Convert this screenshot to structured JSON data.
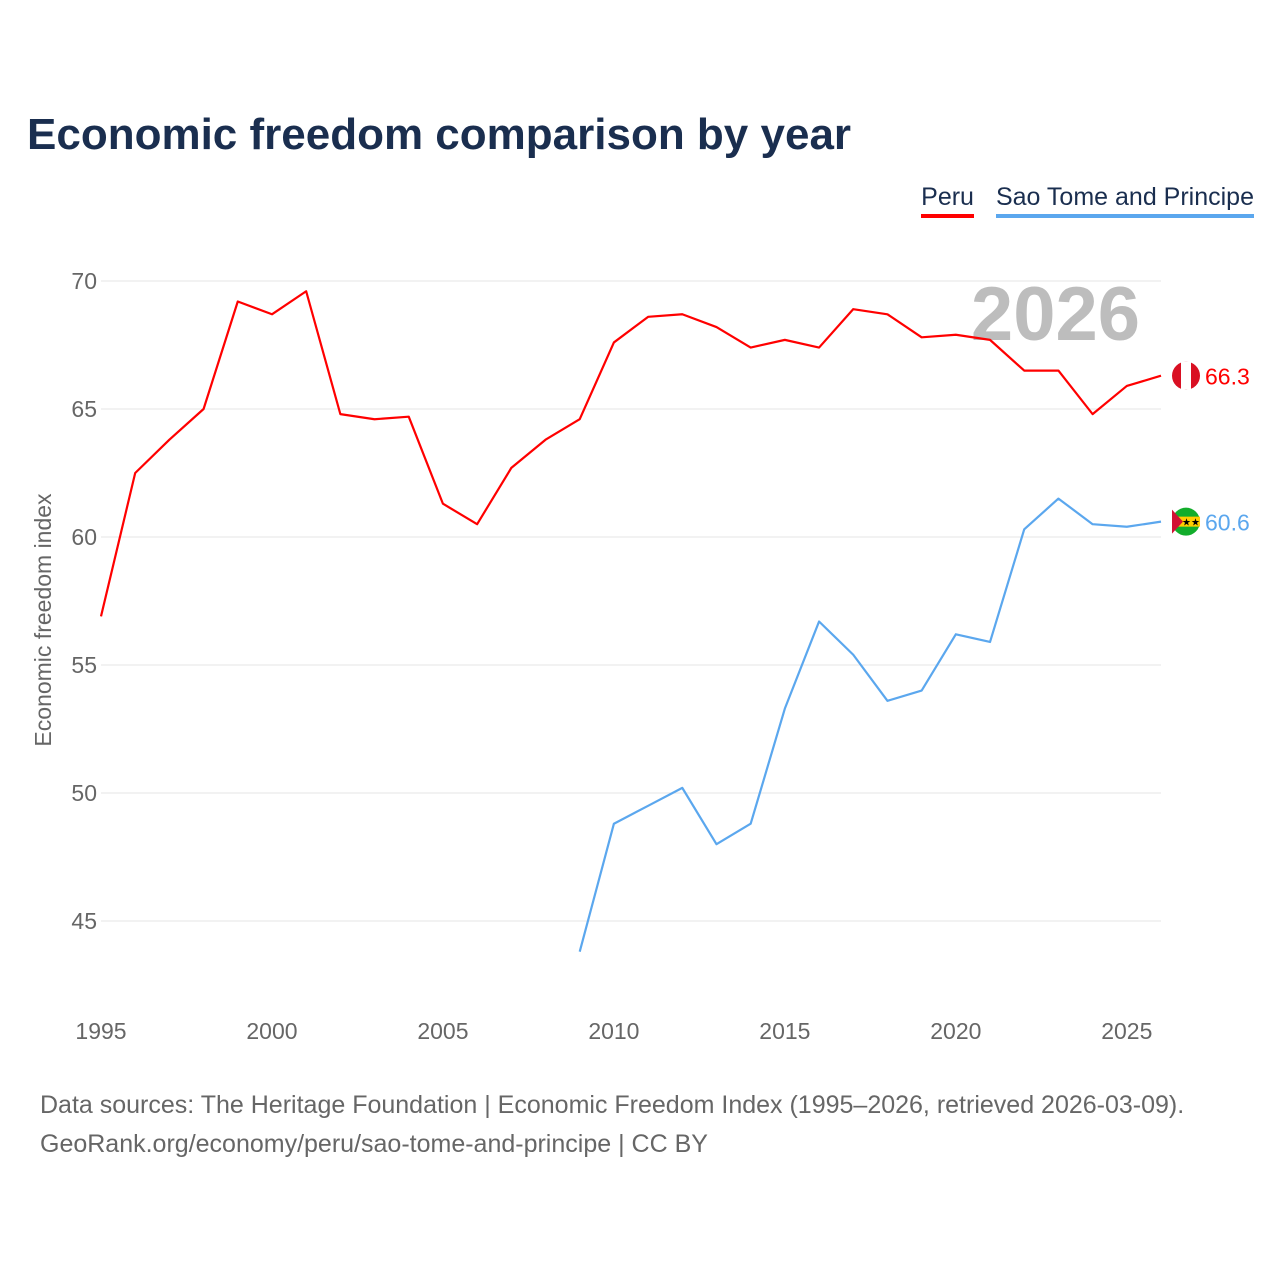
{
  "chart_data": {
    "type": "line",
    "title": "Economic freedom comparison by year",
    "xlabel": "",
    "ylabel": "Economic freedom index",
    "xlim": [
      1995,
      2026
    ],
    "ylim": [
      42.4,
      70
    ],
    "x_ticks": [
      "1995",
      "2000",
      "2005",
      "2010",
      "2015",
      "2020",
      "2025"
    ],
    "y_ticks": [
      "70",
      "65",
      "60",
      "55",
      "50",
      "45"
    ],
    "grid": true,
    "legend_position": "top-right",
    "year_label": "2026",
    "series": [
      {
        "name": "Peru",
        "color": "#ff0000",
        "end_label": "66.3",
        "x": [
          1995,
          1996,
          1997,
          1998,
          1999,
          2000,
          2001,
          2002,
          2003,
          2004,
          2005,
          2006,
          2007,
          2008,
          2009,
          2010,
          2011,
          2012,
          2013,
          2014,
          2015,
          2016,
          2017,
          2018,
          2019,
          2020,
          2021,
          2022,
          2023,
          2024,
          2025,
          2026
        ],
        "values": [
          56.9,
          62.5,
          63.8,
          65.0,
          69.2,
          68.7,
          69.6,
          64.8,
          64.6,
          64.7,
          61.3,
          60.5,
          62.7,
          63.8,
          64.6,
          67.6,
          68.6,
          68.7,
          68.2,
          67.4,
          67.7,
          67.4,
          68.9,
          68.7,
          67.8,
          67.9,
          67.7,
          66.5,
          66.5,
          64.8,
          65.9,
          66.3
        ]
      },
      {
        "name": "Sao Tome and Principe",
        "color": "#5ba7ee",
        "end_label": "60.6",
        "x": [
          2009,
          2010,
          2011,
          2012,
          2013,
          2014,
          2015,
          2016,
          2017,
          2018,
          2019,
          2020,
          2021,
          2022,
          2023,
          2024,
          2025,
          2026
        ],
        "values": [
          43.8,
          48.8,
          49.5,
          50.2,
          48.0,
          48.8,
          53.3,
          56.7,
          55.4,
          53.6,
          54.0,
          56.2,
          55.9,
          60.3,
          61.5,
          60.5,
          60.4,
          60.6
        ]
      }
    ]
  },
  "footer": {
    "line1": "Data sources: The Heritage Foundation | Economic Freedom Index (1995–2026, retrieved 2026-03-09).",
    "line2": "GeoRank.org/economy/peru/sao-tome-and-principe | CC BY"
  }
}
